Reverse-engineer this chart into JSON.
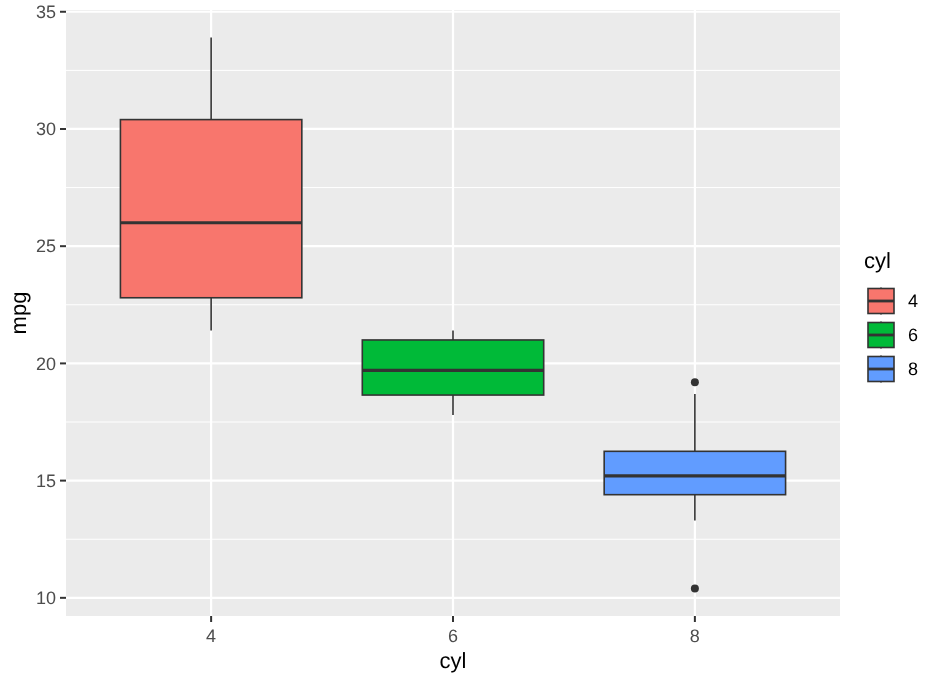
{
  "chart_data": {
    "type": "box",
    "xlabel": "cyl",
    "ylabel": "mpg",
    "legend_title": "cyl",
    "legend": "right",
    "grid": true,
    "categories": [
      "4",
      "6",
      "8"
    ],
    "series": [
      {
        "name": "4",
        "color": "#f8766d",
        "boxes": [
          {
            "low": 21.4,
            "q1": 22.8,
            "median": 26.0,
            "q3": 30.4,
            "high": 33.9
          },
          null,
          null
        ]
      },
      {
        "name": "6",
        "color": "#00ba38",
        "boxes": [
          null,
          {
            "low": 17.8,
            "q1": 18.65,
            "median": 19.7,
            "q3": 21.0,
            "high": 21.4
          },
          null
        ]
      },
      {
        "name": "8",
        "color": "#619cff",
        "boxes": [
          null,
          null,
          {
            "low": 13.3,
            "q1": 14.4,
            "median": 15.2,
            "q3": 16.25,
            "high": 18.7,
            "outliers": [
              10.4,
              19.2
            ]
          }
        ]
      }
    ],
    "ylim": [
      9.225,
      35.075
    ],
    "yticks": [
      10,
      15,
      20,
      25,
      30,
      35
    ]
  }
}
